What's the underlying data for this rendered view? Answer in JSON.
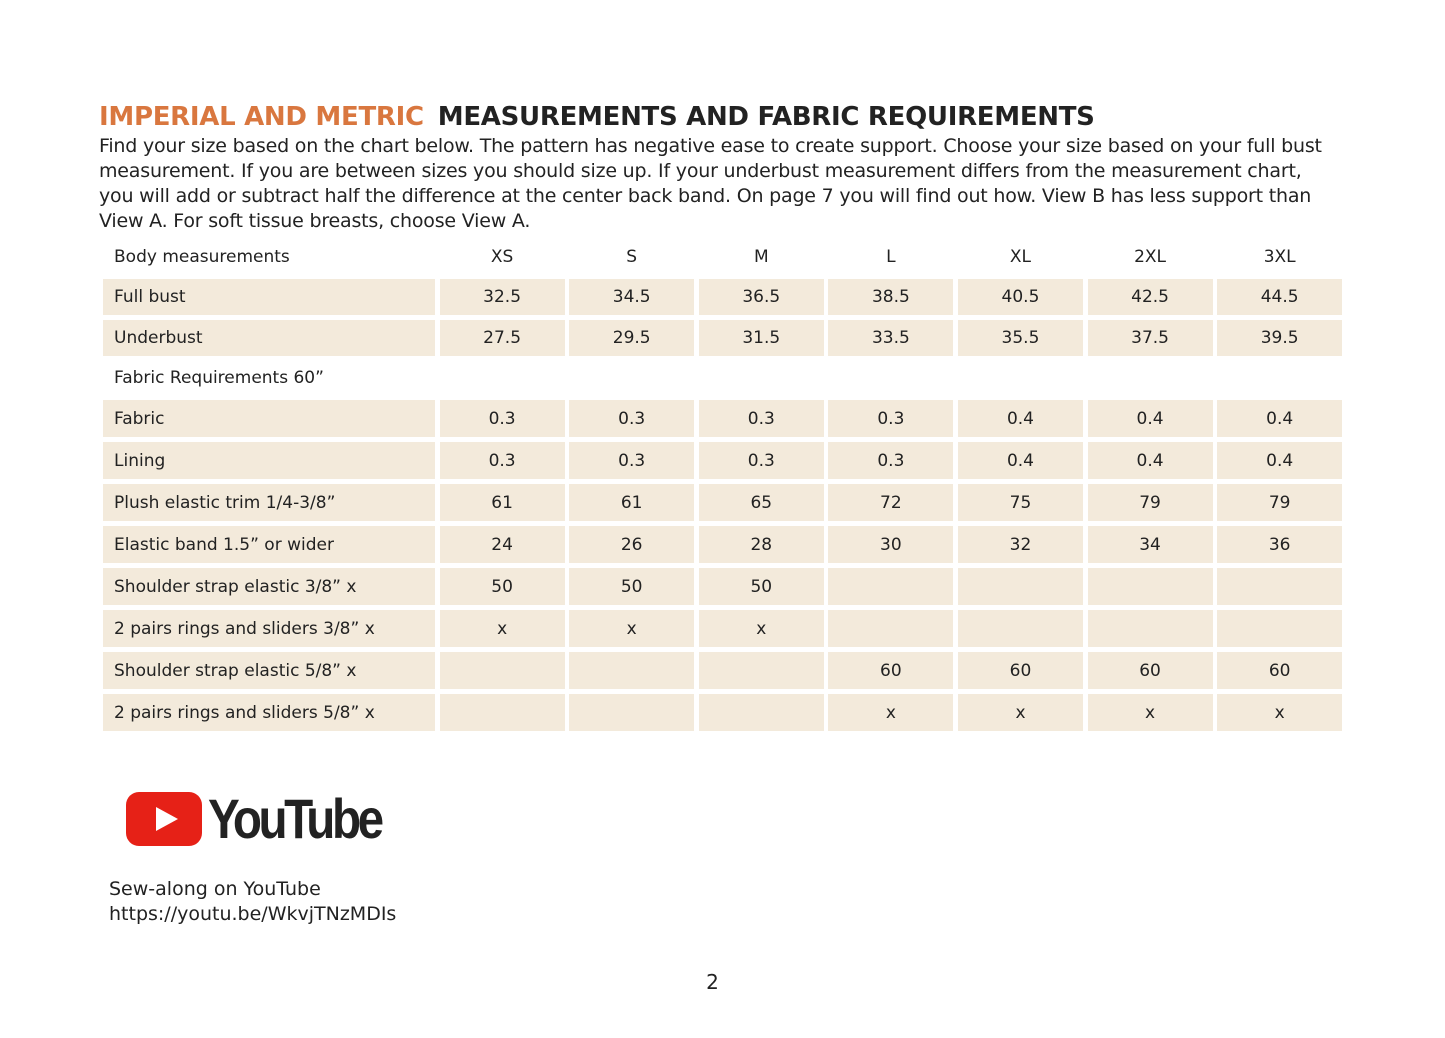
{
  "title": {
    "accent": "IMPERIAL AND METRIC",
    "main": "MEASUREMENTS AND FABRIC REQUIREMENTS"
  },
  "intro": "Find your size based on the chart below. The pattern has negative ease to create support.  Choose your size based on your full bust measurement. If you are between sizes you should size up. If your underbust measurement differs from the measurement chart, you will add or subtract half the difference at the center back band. On page 7 you will find out how. View B has less support than View A. For soft tissue breasts, choose View A.",
  "table": {
    "header": [
      "Body measurements",
      "XS",
      "S",
      "M",
      "L",
      "XL",
      "2XL",
      "3XL"
    ],
    "body_rows": [
      [
        "Full bust",
        "32.5",
        "34.5",
        "36.5",
        "38.5",
        "40.5",
        "42.5",
        "44.5"
      ],
      [
        "Underbust",
        "27.5",
        "29.5",
        "31.5",
        "33.5",
        "35.5",
        "37.5",
        "39.5"
      ]
    ],
    "section2": "Fabric Requirements 60”",
    "fabric_rows": [
      [
        "Fabric",
        "0.3",
        "0.3",
        "0.3",
        "0.3",
        "0.4",
        "0.4",
        "0.4"
      ],
      [
        "Lining",
        "0.3",
        "0.3",
        "0.3",
        "0.3",
        "0.4",
        "0.4",
        "0.4"
      ],
      [
        "Plush elastic trim 1/4-3/8”",
        "61",
        "61",
        "65",
        "72",
        "75",
        "79",
        "79"
      ],
      [
        "Elastic band 1.5” or wider",
        "24",
        "26",
        "28",
        "30",
        "32",
        "34",
        "36"
      ],
      [
        "Shoulder strap elastic 3/8” x",
        "50",
        "50",
        "50",
        "",
        "",
        "",
        ""
      ],
      [
        "2 pairs rings and sliders 3/8” x",
        "x",
        "x",
        "x",
        "",
        "",
        "",
        ""
      ],
      [
        "Shoulder strap elastic 5/8” x",
        "",
        "",
        "",
        "60",
        "60",
        "60",
        "60"
      ],
      [
        "2 pairs rings and sliders 5/8” x",
        "",
        "",
        "",
        "x",
        "x",
        "x",
        "x"
      ]
    ]
  },
  "youtube": {
    "logo_text": "YouTube",
    "caption": "Sew-along on YouTube",
    "link": "https://youtu.be/WkvjTNzMDIs",
    "logo_color": "#e62117"
  },
  "page_number": "2"
}
